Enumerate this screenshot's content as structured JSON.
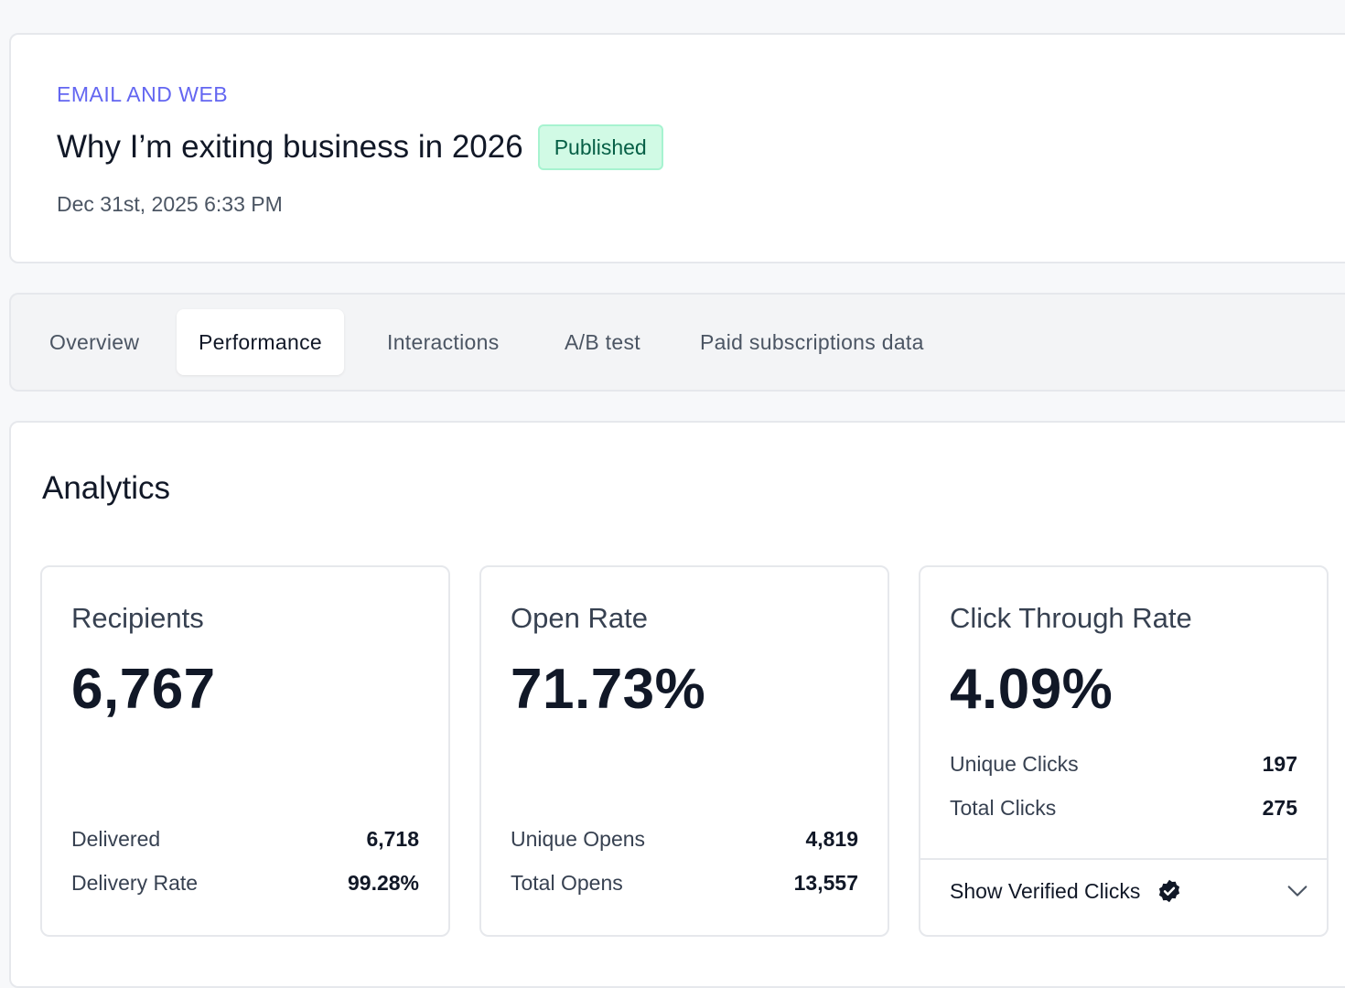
{
  "header": {
    "category": "EMAIL AND WEB",
    "title": "Why I’m exiting business in 2026",
    "status": "Published",
    "date": "Dec 31st, 2025 6:33 PM"
  },
  "tabs": [
    {
      "label": "Overview",
      "active": false
    },
    {
      "label": "Performance",
      "active": true
    },
    {
      "label": "Interactions",
      "active": false
    },
    {
      "label": "A/B test",
      "active": false
    },
    {
      "label": "Paid subscriptions data",
      "active": false
    }
  ],
  "analytics": {
    "title": "Analytics",
    "recipients": {
      "label": "Recipients",
      "value": "6,767",
      "stats": [
        {
          "label": "Delivered",
          "value": "6,718"
        },
        {
          "label": "Delivery Rate",
          "value": "99.28%"
        }
      ]
    },
    "open_rate": {
      "label": "Open Rate",
      "value": "71.73%",
      "stats": [
        {
          "label": "Unique Opens",
          "value": "4,819"
        },
        {
          "label": "Total Opens",
          "value": "13,557"
        }
      ]
    },
    "click_through_rate": {
      "label": "Click Through Rate",
      "value": "4.09%",
      "stats": [
        {
          "label": "Unique Clicks",
          "value": "197"
        },
        {
          "label": "Total Clicks",
          "value": "275"
        }
      ],
      "verified_toggle": "Show Verified Clicks"
    }
  },
  "colors": {
    "accent": "#6366f1",
    "published_bg": "#d1fae5",
    "published_text": "#065f46",
    "verified_icon": "#111827"
  },
  "icons": {
    "verified": "verified-badge-icon",
    "expand": "chevron-down-icon"
  }
}
